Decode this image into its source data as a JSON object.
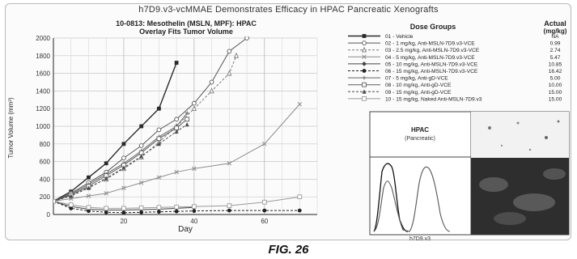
{
  "figure": {
    "title": "h7D9.v3-vcMMAE Demonstrates Efficacy in HPAC Pancreatic Xenografts",
    "caption": "FIG. 26"
  },
  "chart_data": {
    "type": "line",
    "title": "10-0813: Mesothelin (MSLN, MPF): HPAC",
    "subtitle": "Overlay Fits Tumor Volume",
    "xlabel": "Day",
    "ylabel": "Tumor Volume (mm³)",
    "xlim": [
      0,
      75
    ],
    "ylim": [
      0,
      2000
    ],
    "xticks": [
      20,
      40,
      60
    ],
    "yticks": [
      0,
      200,
      400,
      600,
      800,
      1000,
      1200,
      1400,
      1600,
      1800,
      2000
    ],
    "grid": true,
    "legend_position": "right",
    "legend_header": {
      "groups": "Dose Groups",
      "actual": "Actual",
      "unit": "(mg/kg)"
    },
    "series": [
      {
        "name": "01 - Vehicle",
        "actual": "NA",
        "color": "#2a2a2a",
        "marker": "square",
        "x": [
          0,
          5,
          10,
          15,
          20,
          25,
          30,
          35
        ],
        "y": [
          150,
          260,
          420,
          580,
          800,
          1000,
          1200,
          1720
        ]
      },
      {
        "name": "02 - 1 mg/kg, Anti-MSLN-7D9.v3-VCE",
        "actual": "0.99",
        "color": "#555555",
        "marker": "circle",
        "x": [
          0,
          5,
          10,
          15,
          20,
          25,
          30,
          35,
          40,
          45,
          50,
          55
        ],
        "y": [
          150,
          240,
          360,
          480,
          640,
          780,
          960,
          1080,
          1260,
          1500,
          1850,
          2000
        ]
      },
      {
        "name": "03 - 2.5 mg/kg, Anti-MSLN-7D9.v3-VCE",
        "actual": "2.74",
        "color": "#7a7a7a",
        "marker": "triangle",
        "x": [
          0,
          5,
          10,
          15,
          20,
          25,
          30,
          35,
          40,
          45,
          50,
          52
        ],
        "y": [
          150,
          220,
          310,
          400,
          520,
          650,
          820,
          1000,
          1200,
          1400,
          1600,
          1800
        ]
      },
      {
        "name": "04 - 5 mg/kg, Anti-MSLN-7D9.v3-VCE",
        "actual": "5.47",
        "color": "#8c8c8c",
        "marker": "x",
        "x": [
          0,
          5,
          10,
          15,
          20,
          25,
          30,
          35,
          40,
          50,
          60,
          70
        ],
        "y": [
          150,
          180,
          210,
          240,
          300,
          360,
          420,
          480,
          520,
          580,
          800,
          1250
        ]
      },
      {
        "name": "05 - 10 mg/kg, Anti-MSLN-7D9.v3-VCE",
        "actual": "10.85",
        "color": "#444444",
        "marker": "diamond",
        "x": [
          0,
          5,
          10,
          15,
          20,
          25,
          30,
          35,
          40
        ],
        "y": [
          150,
          90,
          60,
          50,
          50,
          55,
          60,
          70,
          80
        ]
      },
      {
        "name": "06 - 15 mg/kg, Anti-MSLN-7D9.v3-VCE",
        "actual": "16.42",
        "color": "#222222",
        "marker": "circle-filled",
        "x": [
          0,
          5,
          10,
          15,
          20,
          25,
          30,
          35,
          40,
          50,
          60,
          70
        ],
        "y": [
          150,
          70,
          40,
          25,
          20,
          25,
          30,
          35,
          40,
          45,
          45,
          45
        ]
      },
      {
        "name": "07 - 5 mg/kg, Anti-gD-VCE",
        "actual": "5.00",
        "color": "#666666",
        "marker": "plus",
        "x": [
          0,
          5,
          10,
          15,
          20,
          25,
          30,
          35,
          38
        ],
        "y": [
          150,
          230,
          340,
          460,
          580,
          720,
          880,
          1000,
          1150
        ]
      },
      {
        "name": "08 - 10 mg/kg, Anti-gD-VCE",
        "actual": "10.00",
        "color": "#5c5c5c",
        "marker": "square-open",
        "x": [
          0,
          5,
          10,
          15,
          20,
          25,
          30,
          35,
          38
        ],
        "y": [
          150,
          220,
          320,
          440,
          560,
          700,
          860,
          980,
          1080
        ]
      },
      {
        "name": "09 - 15 mg/kg, Anti-gD-VCE",
        "actual": "15.00",
        "color": "#4a4a4a",
        "marker": "triangle-filled",
        "x": [
          0,
          5,
          10,
          15,
          20,
          25,
          30,
          35,
          38
        ],
        "y": [
          150,
          210,
          300,
          410,
          530,
          660,
          800,
          940,
          1020
        ]
      },
      {
        "name": "10 - 15 mg/kg, Naked Anti-MSLN-7D9.v3",
        "actual": "15.00",
        "color": "#9a9a9a",
        "marker": "square-open",
        "x": [
          0,
          5,
          10,
          15,
          20,
          25,
          30,
          35,
          40,
          50,
          60,
          70
        ],
        "y": [
          150,
          110,
          80,
          70,
          70,
          75,
          80,
          85,
          90,
          100,
          140,
          200
        ]
      }
    ]
  },
  "inset": {
    "label_title": "HPAC",
    "label_sub": "(Pancreatic)",
    "xaxis_label": "h7D9.v3"
  }
}
